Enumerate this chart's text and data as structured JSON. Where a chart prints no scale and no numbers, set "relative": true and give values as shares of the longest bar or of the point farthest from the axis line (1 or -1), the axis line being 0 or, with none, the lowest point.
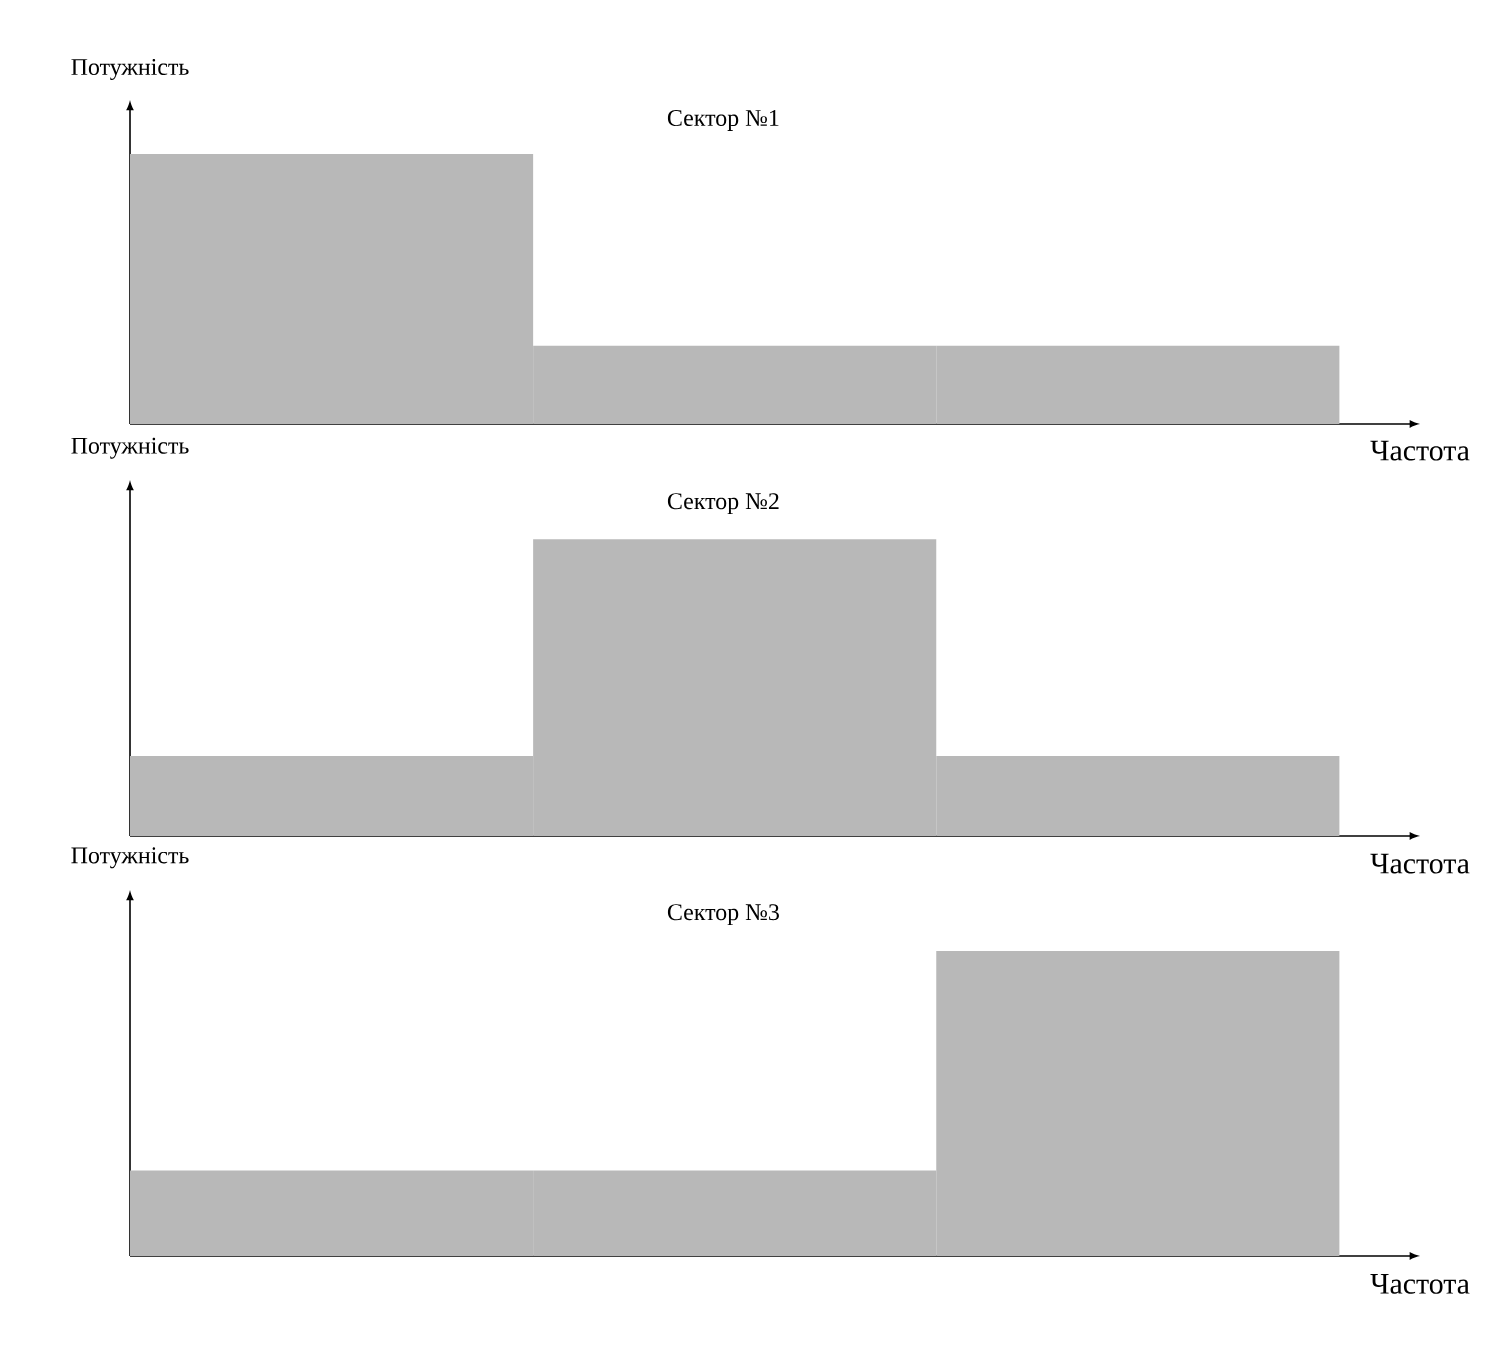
{
  "chart_data": [
    {
      "type": "bar",
      "title": "Сектор №1",
      "xlabel": "Частота",
      "ylabel": "Потужність",
      "categories": [
        null,
        null,
        null
      ],
      "values": [
        1,
        0.29,
        0.29
      ],
      "color": "#b8b8b8",
      "relative": true
    },
    {
      "type": "bar",
      "title": "Сектор №2",
      "xlabel": "Частота",
      "ylabel": "Потужність",
      "categories": [
        null,
        null,
        null
      ],
      "values": [
        0.27,
        1,
        0.27
      ],
      "color": "#b8b8b8",
      "relative": true
    },
    {
      "type": "bar",
      "title": "Сектор №3",
      "xlabel": "Частота",
      "ylabel": "Потужність",
      "categories": [
        null,
        null,
        null
      ],
      "values": [
        0.28,
        0.28,
        1
      ],
      "color": "#b8b8b8",
      "relative": true
    }
  ]
}
